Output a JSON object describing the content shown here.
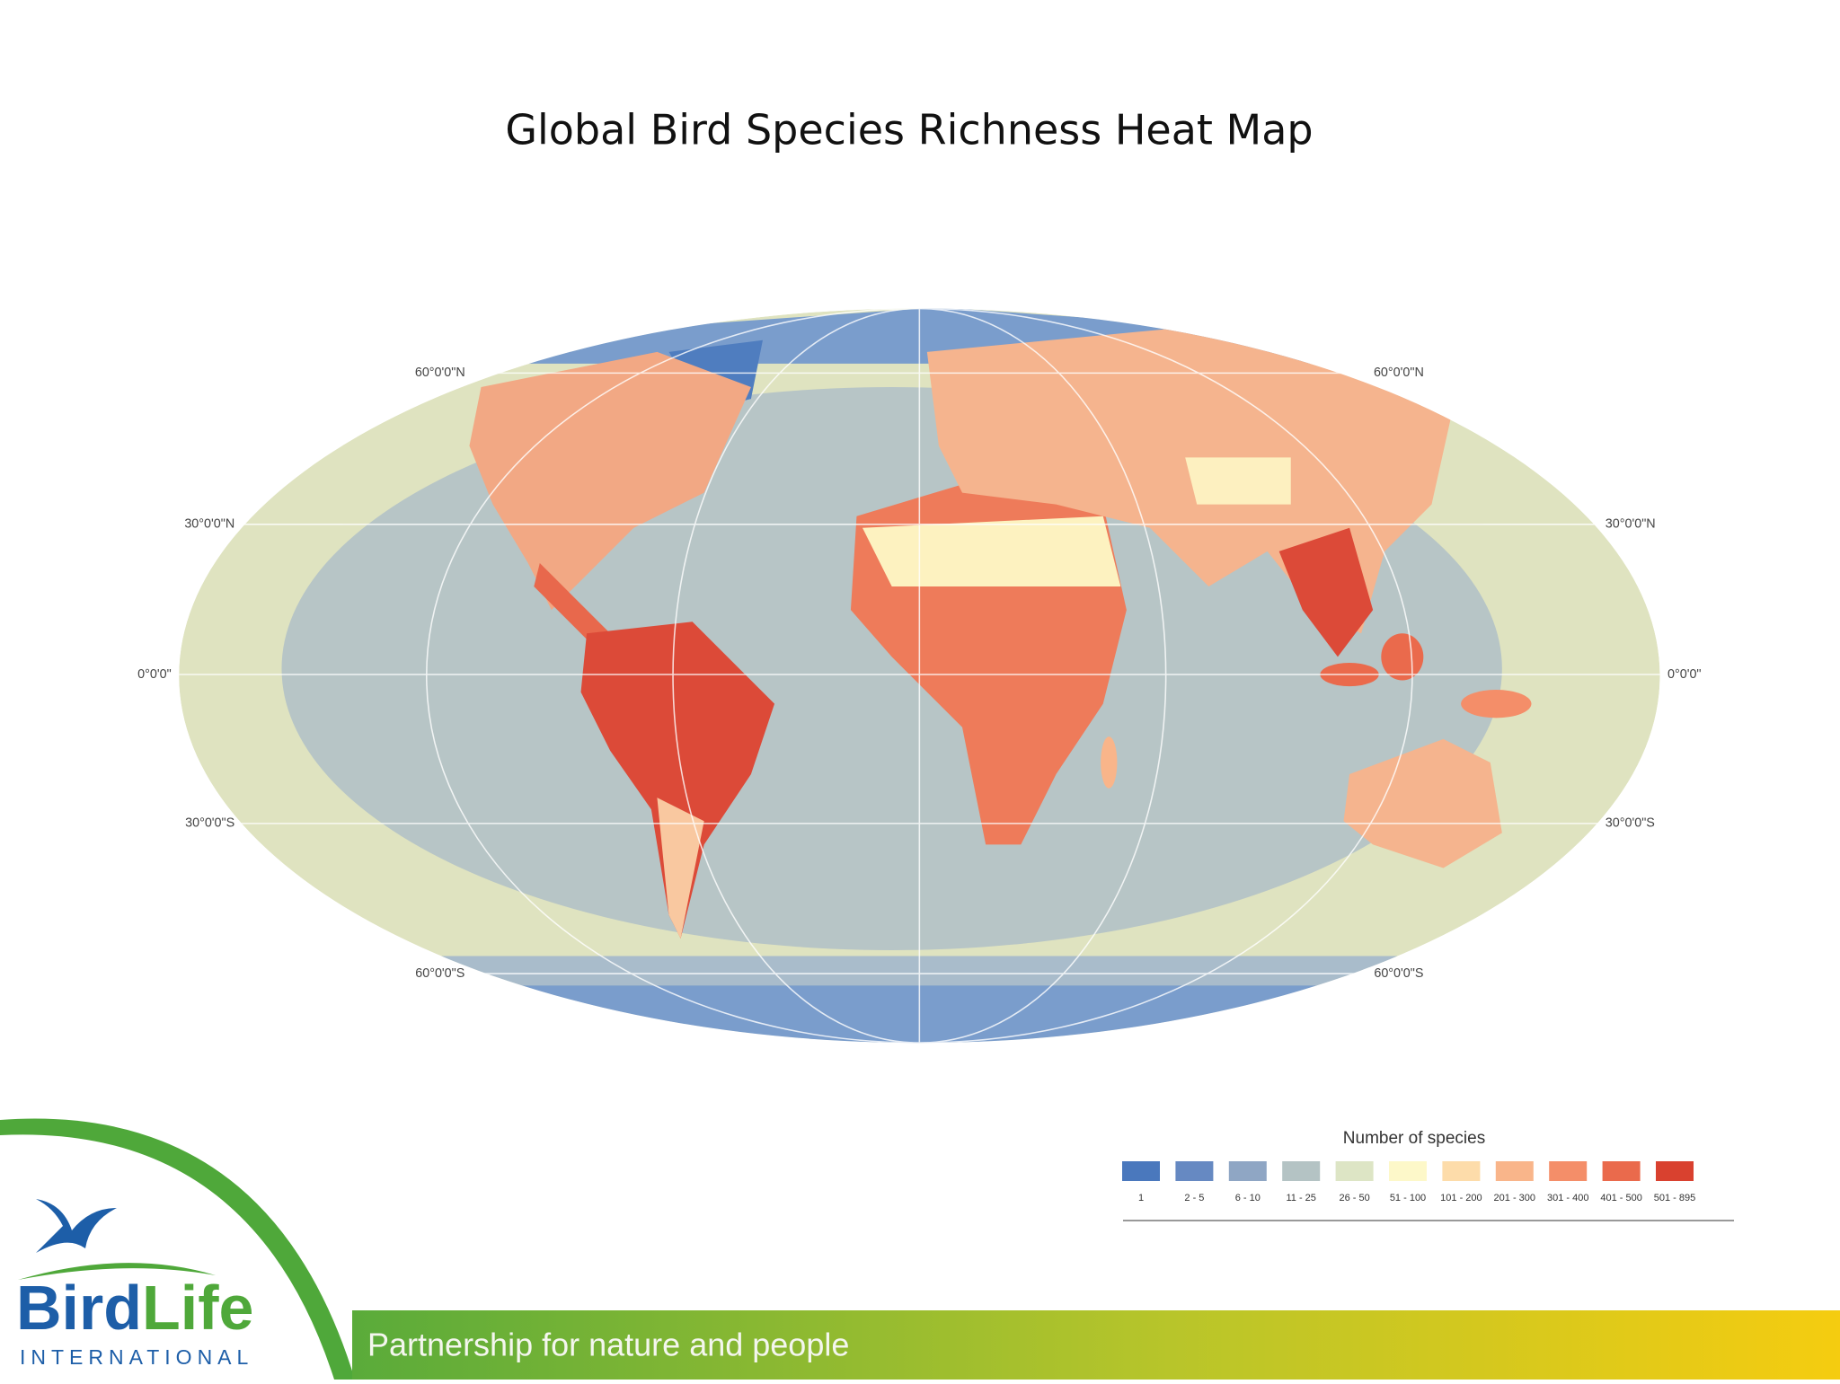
{
  "title": "Global Bird Species Richness Heat Map",
  "map": {
    "lat_labels_left": [
      "60°0'0\"N",
      "30°0'0\"N",
      "0°0'0\"",
      "30°0'0\"S",
      "60°0'0\"S"
    ],
    "lat_labels_right": [
      "60°0'0\"N",
      "30°0'0\"N",
      "0°0'0\"",
      "30°0'0\"S",
      "60°0'0\"S"
    ]
  },
  "legend": {
    "title": "Number of species",
    "items": [
      {
        "label": "1",
        "color": "#4a78bd"
      },
      {
        "label": "2 - 5",
        "color": "#6689c2"
      },
      {
        "label": "6 - 10",
        "color": "#8fa6c4"
      },
      {
        "label": "11 - 25",
        "color": "#b4c3c4"
      },
      {
        "label": "26 - 50",
        "color": "#dde5c5"
      },
      {
        "label": "51 - 100",
        "color": "#fdf8c9"
      },
      {
        "label": "101 - 200",
        "color": "#fddcaa"
      },
      {
        "label": "201 - 300",
        "color": "#f9b58a"
      },
      {
        "label": "301 - 400",
        "color": "#f48e69"
      },
      {
        "label": "401 - 500",
        "color": "#ea6a4c"
      },
      {
        "label": "501 - 895",
        "color": "#d9412f"
      }
    ]
  },
  "footer": {
    "tagline": "Partnership for nature and people",
    "logo": {
      "name_bird": "Bird",
      "name_life": "Life",
      "subtitle": "INTERNATIONAL"
    }
  }
}
